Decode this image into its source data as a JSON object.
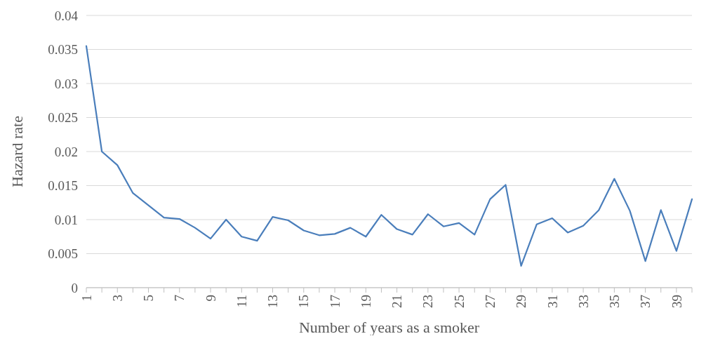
{
  "chart_data": {
    "type": "line",
    "xlabel": "Number of years as a smoker",
    "ylabel": "Hazard rate",
    "categories": [
      "1",
      null,
      "3",
      null,
      "5",
      null,
      "7",
      null,
      "9",
      null,
      "11",
      null,
      "13",
      null,
      "15",
      null,
      "17",
      null,
      "19",
      null,
      "21",
      null,
      "23",
      null,
      "25",
      null,
      "27",
      null,
      "29",
      null,
      "31",
      null,
      "33",
      null,
      "35",
      null,
      "37",
      null,
      "39",
      null
    ],
    "series": [
      {
        "color": "#4a7ebb",
        "values": [
          0.0355,
          0.02,
          0.018,
          0.0139,
          0.0121,
          0.0103,
          0.0101,
          0.0088,
          0.0072,
          0.01,
          0.0075,
          0.0069,
          0.0104,
          0.0099,
          0.0084,
          0.0077,
          0.0079,
          0.0088,
          0.0075,
          0.0107,
          0.0086,
          0.0078,
          0.0108,
          0.009,
          0.0095,
          0.0078,
          0.013,
          0.0151,
          0.0032,
          0.0093,
          0.0102,
          0.0081,
          0.0091,
          0.0114,
          0.016,
          0.0113,
          0.0039,
          0.0114,
          0.0054,
          0.013
        ]
      }
    ],
    "ylim": [
      0,
      0.04
    ],
    "yticks": [
      0,
      0.005,
      0.01,
      0.015,
      0.02,
      0.025,
      0.03,
      0.035,
      0.04
    ],
    "grid": "y"
  }
}
